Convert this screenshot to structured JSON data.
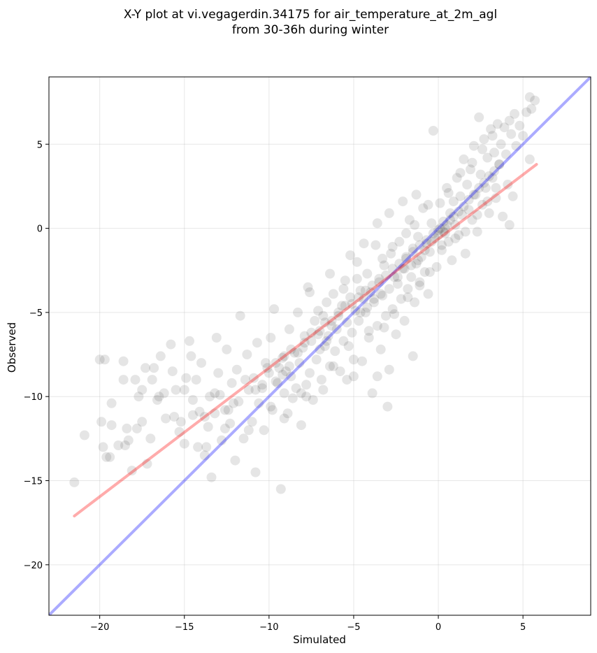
{
  "chart_data": {
    "type": "scatter",
    "title": "X-Y plot at vi.vegagerdin.34175 for air_temperature_at_2m_agl",
    "subtitle": "from 30-36h during winter",
    "xlabel": "Simulated",
    "ylabel": "Observed",
    "xlim": [
      -23.0,
      9.0
    ],
    "ylim": [
      -23.0,
      9.0
    ],
    "xticks": [
      -20,
      -15,
      -10,
      -5,
      0,
      5
    ],
    "yticks": [
      -20,
      -15,
      -10,
      -5,
      0,
      5
    ],
    "xtick_labels": [
      "−20",
      "−15",
      "−10",
      "−5",
      "0",
      "5"
    ],
    "ytick_labels": [
      "−20",
      "−15",
      "−10",
      "−5",
      "0",
      "5"
    ],
    "grid": true,
    "points_color": "#000000",
    "points_alpha": 0.1,
    "identity_line": {
      "x": [
        -23.0,
        9.0
      ],
      "y": [
        -23.0,
        9.0
      ],
      "color": "#0000ff",
      "alpha": 0.33
    },
    "regression_line": {
      "x": [
        -21.5,
        5.8
      ],
      "y": [
        -17.1,
        3.8
      ],
      "color": "#ff0000",
      "alpha": 0.33
    },
    "points": [
      [
        -21.5,
        -15.1
      ],
      [
        -20.9,
        -12.3
      ],
      [
        -20.0,
        -7.8
      ],
      [
        -19.7,
        -7.8
      ],
      [
        -19.9,
        -11.5
      ],
      [
        -19.8,
        -13.0
      ],
      [
        -19.6,
        -13.6
      ],
      [
        -19.4,
        -13.6
      ],
      [
        -19.3,
        -10.4
      ],
      [
        -19.3,
        -11.7
      ],
      [
        -18.6,
        -7.9
      ],
      [
        -18.4,
        -11.9
      ],
      [
        -18.3,
        -12.6
      ],
      [
        -18.1,
        -14.4
      ],
      [
        -18.5,
        -12.9
      ],
      [
        -18.6,
        -9.0
      ],
      [
        -17.9,
        -9.0
      ],
      [
        -17.7,
        -10.0
      ],
      [
        -17.5,
        -11.5
      ],
      [
        -17.5,
        -9.6
      ],
      [
        -17.3,
        -8.3
      ],
      [
        -17.2,
        -14.0
      ],
      [
        -17.0,
        -12.5
      ],
      [
        -16.9,
        -9.0
      ],
      [
        -16.8,
        -8.3
      ],
      [
        -16.5,
        -10.0
      ],
      [
        -16.4,
        -7.6
      ],
      [
        -16.2,
        -9.8
      ],
      [
        -16.1,
        -11.3
      ],
      [
        -15.8,
        -6.9
      ],
      [
        -15.7,
        -8.5
      ],
      [
        -15.6,
        -11.2
      ],
      [
        -15.5,
        -9.6
      ],
      [
        -15.3,
        -12.1
      ],
      [
        -15.2,
        -11.5
      ],
      [
        -15.0,
        -12.8
      ],
      [
        -14.9,
        -8.9
      ],
      [
        -14.7,
        -6.7
      ],
      [
        -14.6,
        -7.6
      ],
      [
        -14.5,
        -10.2
      ],
      [
        -14.3,
        -9.0
      ],
      [
        -14.1,
        -10.9
      ],
      [
        -14.0,
        -8.0
      ],
      [
        -13.8,
        -13.5
      ],
      [
        -13.7,
        -13.0
      ],
      [
        -13.6,
        -11.8
      ],
      [
        -13.5,
        -10.0
      ],
      [
        -13.4,
        -14.8
      ],
      [
        -13.2,
        -9.8
      ],
      [
        -13.1,
        -6.5
      ],
      [
        -13.0,
        -8.6
      ],
      [
        -12.8,
        -12.6
      ],
      [
        -12.6,
        -10.8
      ],
      [
        -12.5,
        -7.2
      ],
      [
        -12.3,
        -11.6
      ],
      [
        -12.2,
        -9.2
      ],
      [
        -12.0,
        -13.8
      ],
      [
        -11.9,
        -8.4
      ],
      [
        -11.8,
        -10.3
      ],
      [
        -11.7,
        -5.2
      ],
      [
        -11.5,
        -12.5
      ],
      [
        -11.3,
        -7.5
      ],
      [
        -11.2,
        -9.6
      ],
      [
        -11.0,
        -11.5
      ],
      [
        -10.9,
        -8.9
      ],
      [
        -10.7,
        -6.8
      ],
      [
        -10.6,
        -10.4
      ],
      [
        -10.4,
        -9.3
      ],
      [
        -10.3,
        -12.0
      ],
      [
        -10.2,
        -8.0
      ],
      [
        -10.0,
        -8.6
      ],
      [
        -9.9,
        -6.5
      ],
      [
        -9.8,
        -10.8
      ],
      [
        -9.7,
        -4.8
      ],
      [
        -9.5,
        -9.2
      ],
      [
        -9.4,
        -8.3
      ],
      [
        -9.3,
        -15.5
      ],
      [
        -9.2,
        -7.7
      ],
      [
        -9.1,
        -9.8
      ],
      [
        -9.0,
        -8.5
      ],
      [
        -8.9,
        -11.0
      ],
      [
        -8.8,
        -6.0
      ],
      [
        -8.7,
        -8.8
      ],
      [
        -8.6,
        -10.1
      ],
      [
        -8.5,
        -7.4
      ],
      [
        -8.4,
        -9.5
      ],
      [
        -8.3,
        -5.0
      ],
      [
        -8.2,
        -8.0
      ],
      [
        -8.1,
        -11.7
      ],
      [
        -8.0,
        -7.1
      ],
      [
        -7.9,
        -6.4
      ],
      [
        -7.8,
        -9.3
      ],
      [
        -7.7,
        -3.5
      ],
      [
        -7.6,
        -8.6
      ],
      [
        -7.5,
        -6.7
      ],
      [
        -7.4,
        -10.2
      ],
      [
        -7.3,
        -5.5
      ],
      [
        -7.2,
        -7.8
      ],
      [
        -7.1,
        -4.9
      ],
      [
        -7.0,
        -6.1
      ],
      [
        -6.9,
        -9.0
      ],
      [
        -6.8,
        -5.2
      ],
      [
        -6.7,
        -7.0
      ],
      [
        -6.6,
        -4.4
      ],
      [
        -6.5,
        -6.4
      ],
      [
        -6.4,
        -8.2
      ],
      [
        -6.3,
        -5.8
      ],
      [
        -6.2,
        -3.9
      ],
      [
        -6.1,
        -7.3
      ],
      [
        -6.0,
        -6.0
      ],
      [
        -5.9,
        -5.2
      ],
      [
        -5.8,
        -8.5
      ],
      [
        -5.7,
        -4.6
      ],
      [
        -5.6,
        -6.7
      ],
      [
        -5.5,
        -3.1
      ],
      [
        -5.4,
        -5.6
      ],
      [
        -5.3,
        -7.0
      ],
      [
        -5.2,
        -4.1
      ],
      [
        -5.1,
        -6.2
      ],
      [
        -5.0,
        -8.8
      ],
      [
        -4.9,
        -4.9
      ],
      [
        -4.8,
        -2.0
      ],
      [
        -4.7,
        -5.5
      ],
      [
        -4.6,
        -3.7
      ],
      [
        -4.5,
        -7.9
      ],
      [
        -4.4,
        -4.2
      ],
      [
        -4.3,
        -5.0
      ],
      [
        -4.2,
        -2.7
      ],
      [
        -4.1,
        -6.5
      ],
      [
        -4.0,
        -3.8
      ],
      [
        -3.9,
        -9.8
      ],
      [
        -3.8,
        -4.4
      ],
      [
        -3.7,
        -1.0
      ],
      [
        -3.6,
        -5.8
      ],
      [
        -3.5,
        -3.2
      ],
      [
        -3.4,
        -7.2
      ],
      [
        -3.3,
        -4.0
      ],
      [
        -3.2,
        -2.2
      ],
      [
        -3.1,
        -5.2
      ],
      [
        -3.0,
        -10.6
      ],
      [
        -2.9,
        -3.6
      ],
      [
        -2.8,
        -1.5
      ],
      [
        -2.7,
        -4.8
      ],
      [
        -2.6,
        -2.9
      ],
      [
        -2.5,
        -6.3
      ],
      [
        -2.4,
        -3.3
      ],
      [
        -2.3,
        -0.8
      ],
      [
        -2.2,
        -4.2
      ],
      [
        -2.1,
        -2.4
      ],
      [
        -2.0,
        -5.5
      ],
      [
        -1.9,
        -1.8
      ],
      [
        -1.8,
        -3.6
      ],
      [
        -1.7,
        0.5
      ],
      [
        -1.6,
        -2.9
      ],
      [
        -1.5,
        -1.2
      ],
      [
        -1.4,
        -4.4
      ],
      [
        -1.3,
        -2.1
      ],
      [
        -1.2,
        -0.5
      ],
      [
        -1.1,
        -3.4
      ],
      [
        -1.0,
        -1.7
      ],
      [
        -0.9,
        1.2
      ],
      [
        -0.8,
        -2.6
      ],
      [
        -0.7,
        -0.9
      ],
      [
        -0.6,
        -3.9
      ],
      [
        -0.5,
        -1.4
      ],
      [
        -0.4,
        0.3
      ],
      [
        -0.3,
        5.8
      ],
      [
        -0.2,
        -0.6
      ],
      [
        -0.1,
        -2.3
      ],
      [
        0.0,
        -0.1
      ],
      [
        0.1,
        1.5
      ],
      [
        0.2,
        -1.0
      ],
      [
        0.3,
        0.4
      ],
      [
        0.4,
        -0.3
      ],
      [
        0.5,
        2.4
      ],
      [
        0.6,
        -0.8
      ],
      [
        0.7,
        0.9
      ],
      [
        0.8,
        -1.9
      ],
      [
        0.9,
        1.6
      ],
      [
        1.0,
        0.2
      ],
      [
        1.1,
        3.0
      ],
      [
        1.2,
        -0.4
      ],
      [
        1.3,
        1.9
      ],
      [
        1.4,
        0.8
      ],
      [
        1.5,
        4.1
      ],
      [
        1.6,
        -1.5
      ],
      [
        1.7,
        2.6
      ],
      [
        1.8,
        1.1
      ],
      [
        1.9,
        3.5
      ],
      [
        2.0,
        0.5
      ],
      [
        2.1,
        4.9
      ],
      [
        2.2,
        2.0
      ],
      [
        2.3,
        -0.2
      ],
      [
        2.4,
        6.6
      ],
      [
        2.5,
        3.2
      ],
      [
        2.6,
        1.4
      ],
      [
        2.7,
        5.3
      ],
      [
        2.8,
        2.4
      ],
      [
        2.9,
        4.2
      ],
      [
        3.0,
        0.9
      ],
      [
        3.1,
        5.9
      ],
      [
        3.2,
        3.0
      ],
      [
        3.3,
        4.5
      ],
      [
        3.4,
        1.8
      ],
      [
        3.5,
        6.2
      ],
      [
        3.6,
        3.8
      ],
      [
        3.7,
        5.0
      ],
      [
        3.8,
        0.7
      ],
      [
        3.9,
        6.0
      ],
      [
        4.0,
        4.4
      ],
      [
        4.1,
        2.6
      ],
      [
        4.2,
        6.4
      ],
      [
        4.3,
        5.6
      ],
      [
        4.4,
        1.9
      ],
      [
        4.5,
        6.8
      ],
      [
        4.6,
        4.9
      ],
      [
        4.8,
        6.1
      ],
      [
        5.0,
        5.5
      ],
      [
        5.2,
        6.9
      ],
      [
        5.4,
        7.8
      ],
      [
        5.5,
        7.1
      ],
      [
        5.7,
        7.6
      ],
      [
        4.2,
        0.2
      ],
      [
        5.4,
        4.1
      ],
      [
        -14.5,
        -11.1
      ],
      [
        -13.8,
        -11.2
      ],
      [
        -12.9,
        -9.9
      ],
      [
        -12.1,
        -10.4
      ],
      [
        -11.4,
        -9.0
      ],
      [
        -10.8,
        -9.6
      ],
      [
        -10.1,
        -8.3
      ],
      [
        -9.6,
        -8.0
      ],
      [
        -9.1,
        -7.6
      ],
      [
        -8.7,
        -7.2
      ],
      [
        -8.3,
        -7.4
      ],
      [
        -7.9,
        -6.8
      ],
      [
        -7.5,
        -6.2
      ],
      [
        -7.1,
        -6.3
      ],
      [
        -6.7,
        -5.6
      ],
      [
        -6.3,
        -5.5
      ],
      [
        -5.9,
        -5.0
      ],
      [
        -5.5,
        -4.6
      ],
      [
        -5.1,
        -4.5
      ],
      [
        -4.7,
        -4.1
      ],
      [
        -4.3,
        -3.7
      ],
      [
        -3.9,
        -3.4
      ],
      [
        -3.5,
        -3.0
      ],
      [
        -3.1,
        -2.8
      ],
      [
        -2.7,
        -2.4
      ],
      [
        -2.3,
        -2.1
      ],
      [
        -1.9,
        -1.7
      ],
      [
        -1.5,
        -1.4
      ],
      [
        -1.1,
        -1.0
      ],
      [
        -0.7,
        -0.7
      ],
      [
        -0.3,
        -0.3
      ],
      [
        0.1,
        0.0
      ],
      [
        0.3,
        -0.2
      ],
      [
        0.5,
        0.2
      ],
      [
        0.7,
        0.5
      ],
      [
        0.9,
        0.7
      ],
      [
        1.2,
        1.0
      ],
      [
        1.5,
        1.3
      ],
      [
        1.8,
        1.7
      ],
      [
        2.1,
        2.0
      ],
      [
        2.4,
        2.4
      ],
      [
        2.7,
        2.7
      ],
      [
        3.0,
        3.1
      ],
      [
        3.3,
        3.4
      ],
      [
        3.6,
        3.8
      ],
      [
        -2.0,
        -2.4
      ],
      [
        -1.6,
        -2.2
      ],
      [
        -2.4,
        -2.9
      ],
      [
        -1.2,
        -1.9
      ],
      [
        -0.8,
        -1.3
      ],
      [
        -0.4,
        -0.8
      ],
      [
        0.0,
        -0.4
      ],
      [
        0.4,
        0.0
      ],
      [
        -3.4,
        -3.9
      ],
      [
        -3.8,
        -4.2
      ],
      [
        -4.2,
        -4.7
      ],
      [
        -4.6,
        -5.0
      ],
      [
        -6.6,
        -6.7
      ],
      [
        -7.0,
        -7.2
      ],
      [
        -8.8,
        -8.2
      ],
      [
        -9.2,
        -8.7
      ],
      [
        -9.6,
        -9.1
      ],
      [
        -10.4,
        -9.5
      ],
      [
        -12.4,
        -10.8
      ],
      [
        -13.2,
        -11.0
      ],
      [
        -15.0,
        -9.6
      ],
      [
        -16.6,
        -10.2
      ],
      [
        -17.8,
        -11.9
      ],
      [
        -18.9,
        -12.9
      ],
      [
        -11.2,
        -12.0
      ],
      [
        -9.9,
        -10.6
      ],
      [
        -8.1,
        -9.8
      ],
      [
        -10.8,
        -14.5
      ],
      [
        -14.2,
        -13.0
      ],
      [
        -12.6,
        -11.9
      ],
      [
        -6.2,
        -8.2
      ],
      [
        -5.0,
        -7.8
      ],
      [
        -4.1,
        -6.1
      ],
      [
        -3.2,
        -5.9
      ],
      [
        -2.6,
        -5.1
      ],
      [
        -1.8,
        -4.1
      ],
      [
        -1.1,
        -3.2
      ],
      [
        -0.5,
        -2.6
      ],
      [
        0.2,
        -1.3
      ],
      [
        1.0,
        -0.6
      ],
      [
        1.6,
        -0.2
      ],
      [
        2.3,
        0.8
      ],
      [
        2.9,
        1.6
      ],
      [
        3.4,
        2.4
      ],
      [
        -7.6,
        -3.8
      ],
      [
        -6.4,
        -2.7
      ],
      [
        -5.2,
        -1.6
      ],
      [
        -4.4,
        -0.9
      ],
      [
        -3.6,
        0.3
      ],
      [
        -2.9,
        0.9
      ],
      [
        -2.1,
        1.6
      ],
      [
        -1.3,
        2.0
      ],
      [
        -0.6,
        1.4
      ],
      [
        0.6,
        2.1
      ],
      [
        1.3,
        3.3
      ],
      [
        2.0,
        3.9
      ],
      [
        2.6,
        4.7
      ],
      [
        3.2,
        5.5
      ],
      [
        -1.9,
        -0.3
      ],
      [
        -1.4,
        0.2
      ],
      [
        -2.7,
        -1.1
      ],
      [
        -3.3,
        -1.8
      ],
      [
        -4.8,
        -3.0
      ],
      [
        -5.6,
        -3.6
      ],
      [
        -9.1,
        -11.3
      ],
      [
        -7.8,
        -10.0
      ],
      [
        -6.8,
        -9.6
      ],
      [
        -5.4,
        -9.0
      ],
      [
        -3.6,
        -8.8
      ],
      [
        -2.9,
        -8.4
      ],
      [
        -1.5,
        -7.6
      ]
    ]
  }
}
